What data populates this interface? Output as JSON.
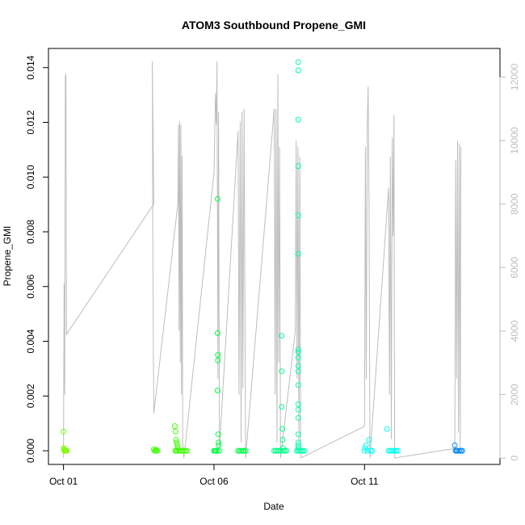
{
  "chart_data": {
    "type": "scatter",
    "title": "ATOM3 Southbound Propene_GMI",
    "xlabel": "Date",
    "ylabel": "Propene_GMI",
    "x_ticks": [
      {
        "day": 1,
        "label": "Oct 01"
      },
      {
        "day": 6,
        "label": "Oct 06"
      },
      {
        "day": 11,
        "label": "Oct 11"
      }
    ],
    "y_ticks": [
      0.0,
      0.002,
      0.004,
      0.006,
      0.008,
      0.01,
      0.012,
      0.014
    ],
    "y_tick_labels": [
      "0.000",
      "0.002",
      "0.004",
      "0.006",
      "0.008",
      "0.010",
      "0.012",
      "0.014"
    ],
    "right_axis_ticks": [
      0,
      2000,
      4000,
      6000,
      8000,
      10000,
      12000
    ],
    "right_axis_tick_labels": [
      "0",
      "2000",
      "4000",
      "6000",
      "8000",
      "10000",
      "12000"
    ],
    "xlim": [
      0.5,
      15.5
    ],
    "ylim": [
      -0.0005,
      0.0147
    ],
    "right_ylim": [
      -200,
      12900
    ],
    "line_color": "#bdbdbd",
    "right_axis_color": "#bdbdbd",
    "series": [
      {
        "color": "#77ff00",
        "points": [
          [
            1.0,
            0.0007
          ],
          [
            1.01,
            0.0001
          ],
          [
            1.02,
            5e-05
          ],
          [
            1.03,
            0.0
          ],
          [
            1.04,
            0.0
          ],
          [
            1.06,
            0.0
          ],
          [
            1.08,
            0.0
          ],
          [
            1.1,
            0.0
          ]
        ]
      },
      {
        "color": "#3cff00",
        "points": [
          [
            4.0,
            5e-05
          ],
          [
            4.03,
            0.0
          ],
          [
            4.06,
            0.0
          ],
          [
            4.09,
            3e-05
          ],
          [
            4.12,
            0.0
          ],
          [
            4.7,
            0.0009
          ],
          [
            4.72,
            0.0007
          ],
          [
            4.74,
            0.0004
          ],
          [
            4.76,
            0.0003
          ],
          [
            4.78,
            0.0002
          ],
          [
            4.8,
            0.0001
          ],
          [
            4.72,
            0.0
          ],
          [
            4.75,
            0.0
          ],
          [
            4.8,
            0.0
          ],
          [
            4.85,
            0.0
          ],
          [
            4.9,
            0.0
          ],
          [
            4.95,
            0.0
          ],
          [
            5.0,
            0.0
          ],
          [
            5.05,
            0.0
          ],
          [
            5.1,
            0.0
          ]
        ]
      },
      {
        "color": "#00ff44",
        "points": [
          [
            6.0,
            0.0
          ],
          [
            6.03,
            0.0
          ],
          [
            6.06,
            0.0
          ],
          [
            6.1,
            0.0
          ],
          [
            6.12,
            0.0092
          ],
          [
            6.12,
            0.0043
          ],
          [
            6.13,
            0.0035
          ],
          [
            6.13,
            0.0033
          ],
          [
            6.12,
            0.0022
          ],
          [
            6.14,
            0.0006
          ],
          [
            6.15,
            0.0003
          ],
          [
            6.16,
            0.0002
          ],
          [
            6.17,
            0.0
          ],
          [
            6.8,
            0.0
          ],
          [
            6.85,
            0.0
          ],
          [
            6.9,
            0.0
          ],
          [
            6.95,
            0.0
          ],
          [
            7.0,
            0.0
          ],
          [
            7.05,
            0.0
          ]
        ]
      },
      {
        "color": "#00ff88",
        "points": [
          [
            8.0,
            0.0
          ],
          [
            8.05,
            0.0
          ],
          [
            8.1,
            0.0
          ],
          [
            8.15,
            0.0
          ],
          [
            8.2,
            0.0
          ],
          [
            8.25,
            0.0042
          ],
          [
            8.25,
            0.0029
          ],
          [
            8.25,
            0.0016
          ],
          [
            8.27,
            0.0008
          ],
          [
            8.28,
            0.0004
          ],
          [
            8.29,
            0.0001
          ],
          [
            8.3,
            0.0
          ],
          [
            8.35,
            0.0
          ],
          [
            8.4,
            0.0
          ]
        ]
      },
      {
        "color": "#00ffaa",
        "points": [
          [
            8.8,
            0.0142
          ],
          [
            8.8,
            0.0139
          ],
          [
            8.8,
            0.0121
          ],
          [
            8.8,
            0.0104
          ],
          [
            8.8,
            0.0086
          ],
          [
            8.8,
            0.0072
          ],
          [
            8.8,
            0.0037
          ],
          [
            8.8,
            0.0036
          ],
          [
            8.8,
            0.0034
          ],
          [
            8.8,
            0.0031
          ],
          [
            8.8,
            0.0029
          ],
          [
            8.8,
            0.0024
          ],
          [
            8.8,
            0.0017
          ],
          [
            8.8,
            0.0015
          ],
          [
            8.8,
            0.0012
          ],
          [
            8.8,
            0.0006
          ],
          [
            8.8,
            0.0003
          ],
          [
            8.8,
            0.0002
          ],
          [
            8.8,
            0.0001
          ],
          [
            8.75,
            0.0
          ],
          [
            8.8,
            0.0
          ],
          [
            8.85,
            0.0
          ],
          [
            8.9,
            0.0
          ],
          [
            8.95,
            0.0
          ],
          [
            9.0,
            0.0
          ]
        ]
      },
      {
        "color": "#00ffee",
        "points": [
          [
            11.0,
            0.0
          ],
          [
            11.02,
            0.0001
          ],
          [
            11.05,
            0.0002
          ],
          [
            11.1,
            0.0
          ],
          [
            11.15,
            0.0004
          ],
          [
            11.2,
            0.0
          ],
          [
            11.25,
            0.0
          ],
          [
            11.75,
            0.0008
          ],
          [
            11.8,
            0.0
          ],
          [
            11.85,
            0.0
          ],
          [
            11.9,
            0.0
          ],
          [
            11.95,
            0.0
          ],
          [
            12.0,
            0.0
          ],
          [
            12.05,
            0.0
          ],
          [
            12.1,
            0.0
          ]
        ]
      },
      {
        "color": "#0088ee",
        "points": [
          [
            14.0,
            0.0002
          ],
          [
            14.03,
            0.0
          ],
          [
            14.06,
            0.0
          ],
          [
            14.1,
            0.0
          ],
          [
            14.15,
            0.0
          ],
          [
            14.2,
            0.0
          ],
          [
            14.25,
            0.0
          ]
        ]
      }
    ],
    "line_series": {
      "points": [
        [
          1.0,
          0
        ],
        [
          1.02,
          5500
        ],
        [
          1.04,
          2000
        ],
        [
          1.06,
          12000
        ],
        [
          1.08,
          12100
        ],
        [
          1.1,
          3900
        ],
        [
          4.0,
          8000
        ],
        [
          3.95,
          12500
        ],
        [
          3.97,
          6000
        ],
        [
          4.0,
          1400
        ],
        [
          4.8,
          8000
        ],
        [
          4.82,
          10500
        ],
        [
          4.84,
          4000
        ],
        [
          4.86,
          10600
        ],
        [
          4.88,
          3000
        ],
        [
          4.9,
          10500
        ],
        [
          4.92,
          2000
        ],
        [
          4.94,
          9500
        ],
        [
          4.96,
          500
        ],
        [
          5.0,
          0
        ],
        [
          6.0,
          9000
        ],
        [
          6.05,
          11500
        ],
        [
          6.08,
          10500
        ],
        [
          6.1,
          12500
        ],
        [
          6.13,
          2500
        ],
        [
          6.15,
          10900
        ],
        [
          6.18,
          300
        ],
        [
          6.8,
          10300
        ],
        [
          6.83,
          2000
        ],
        [
          6.87,
          10600
        ],
        [
          6.9,
          500
        ],
        [
          6.93,
          10900
        ],
        [
          6.96,
          2200
        ],
        [
          7.0,
          11000
        ],
        [
          7.05,
          0
        ],
        [
          8.0,
          11000
        ],
        [
          8.03,
          2000
        ],
        [
          8.06,
          11000
        ],
        [
          8.09,
          500
        ],
        [
          8.12,
          12100
        ],
        [
          8.15,
          3000
        ],
        [
          8.18,
          9800
        ],
        [
          8.21,
          0
        ],
        [
          8.7,
          4000
        ],
        [
          8.73,
          10000
        ],
        [
          8.76,
          2500
        ],
        [
          8.79,
          9800
        ],
        [
          8.82,
          500
        ],
        [
          8.85,
          9500
        ],
        [
          8.88,
          0
        ],
        [
          11.0,
          1000
        ],
        [
          11.03,
          9800
        ],
        [
          11.06,
          2500
        ],
        [
          11.09,
          10500
        ],
        [
          11.12,
          11700
        ],
        [
          11.15,
          8000
        ],
        [
          11.18,
          0
        ],
        [
          11.8,
          8500
        ],
        [
          11.83,
          2000
        ],
        [
          11.86,
          9500
        ],
        [
          11.89,
          600
        ],
        [
          11.92,
          10100
        ],
        [
          11.95,
          7000
        ],
        [
          11.98,
          10800
        ],
        [
          12.0,
          0
        ],
        [
          14.0,
          300
        ],
        [
          14.03,
          9400
        ],
        [
          14.06,
          2500
        ],
        [
          14.09,
          10000
        ],
        [
          14.12,
          800
        ],
        [
          14.15,
          9900
        ],
        [
          14.18,
          300
        ],
        [
          14.2,
          9800
        ]
      ]
    }
  }
}
